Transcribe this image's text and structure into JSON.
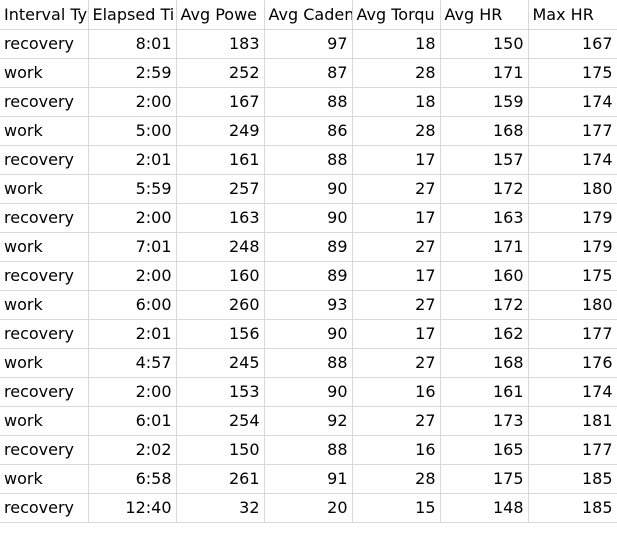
{
  "columns": [
    "Interval Ty",
    "Elapsed Ti",
    "Avg Powe",
    "Avg Caden",
    "Avg Torqu",
    "Avg HR",
    "Max HR"
  ],
  "rows": [
    [
      "recovery",
      "8:01",
      "183",
      "97",
      "18",
      "150",
      "167"
    ],
    [
      "work",
      "2:59",
      "252",
      "87",
      "28",
      "171",
      "175"
    ],
    [
      "recovery",
      "2:00",
      "167",
      "88",
      "18",
      "159",
      "174"
    ],
    [
      "work",
      "5:00",
      "249",
      "86",
      "28",
      "168",
      "177"
    ],
    [
      "recovery",
      "2:01",
      "161",
      "88",
      "17",
      "157",
      "174"
    ],
    [
      "work",
      "5:59",
      "257",
      "90",
      "27",
      "172",
      "180"
    ],
    [
      "recovery",
      "2:00",
      "163",
      "90",
      "17",
      "163",
      "179"
    ],
    [
      "work",
      "7:01",
      "248",
      "89",
      "27",
      "171",
      "179"
    ],
    [
      "recovery",
      "2:00",
      "160",
      "89",
      "17",
      "160",
      "175"
    ],
    [
      "work",
      "6:00",
      "260",
      "93",
      "27",
      "172",
      "180"
    ],
    [
      "recovery",
      "2:01",
      "156",
      "90",
      "17",
      "162",
      "177"
    ],
    [
      "work",
      "4:57",
      "245",
      "88",
      "27",
      "168",
      "176"
    ],
    [
      "recovery",
      "2:00",
      "153",
      "90",
      "16",
      "161",
      "174"
    ],
    [
      "work",
      "6:01",
      "254",
      "92",
      "27",
      "173",
      "181"
    ],
    [
      "recovery",
      "2:02",
      "150",
      "88",
      "16",
      "165",
      "177"
    ],
    [
      "work",
      "6:58",
      "261",
      "91",
      "28",
      "175",
      "185"
    ],
    [
      "recovery",
      "12:40",
      "32",
      "20",
      "15",
      "148",
      "185"
    ]
  ]
}
